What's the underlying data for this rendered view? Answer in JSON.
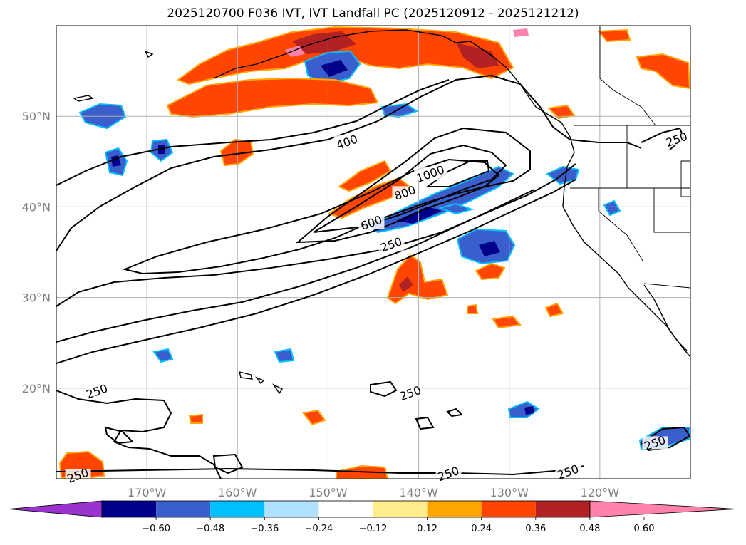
{
  "title": "2025120700 F036 IVT, IVT Landfall PC (2025120912 - 2025121212)",
  "map": {
    "lon_range": [
      -180,
      -110
    ],
    "lat_range": [
      10,
      60
    ],
    "lat_ticks": [
      {
        "value": 50,
        "label": "50°N"
      },
      {
        "value": 40,
        "label": "40°N"
      },
      {
        "value": 30,
        "label": "30°N"
      },
      {
        "value": 20,
        "label": "20°N"
      }
    ],
    "lon_ticks": [
      {
        "value": -170,
        "label": "170°W"
      },
      {
        "value": -160,
        "label": "160°W"
      },
      {
        "value": -150,
        "label": "150°W"
      },
      {
        "value": -140,
        "label": "140°W"
      },
      {
        "value": -130,
        "label": "130°W"
      },
      {
        "value": -120,
        "label": "120°W"
      }
    ],
    "grid": true,
    "ivt_contour_labels": [
      {
        "text": "400",
        "lon": -147.9,
        "lat": 47.1
      },
      {
        "text": "1000",
        "lon": -138.7,
        "lat": 43.6
      },
      {
        "text": "800",
        "lon": -141.5,
        "lat": 41.5
      },
      {
        "text": "600",
        "lon": -145.2,
        "lat": 38.2
      },
      {
        "text": "250",
        "lon": -143.0,
        "lat": 35.8
      },
      {
        "text": "250",
        "lon": -175.5,
        "lat": 19.6
      },
      {
        "text": "250",
        "lon": -140.9,
        "lat": 19.4
      },
      {
        "text": "250",
        "lon": -177.6,
        "lat": 10.3
      },
      {
        "text": "250",
        "lon": -136.7,
        "lat": 10.5
      },
      {
        "text": "250",
        "lon": -123.5,
        "lat": 10.7
      },
      {
        "text": "250",
        "lon": -113.9,
        "lat": 13.9
      },
      {
        "text": "250",
        "lon": -111.5,
        "lat": 47.4
      }
    ]
  },
  "colorbar": {
    "ticks": [
      "−0.60",
      "−0.48",
      "−0.36",
      "−0.24",
      "−0.12",
      "0.12",
      "0.24",
      "0.36",
      "0.48",
      "0.60"
    ],
    "colors": [
      "#9a32cd",
      "#00008b",
      "#3a5fcd",
      "#00bfff",
      "#b0e2ff",
      "#ffffff",
      "#ffec8b",
      "#ffa500",
      "#ff4500",
      "#b22222",
      "#ff82ab"
    ],
    "extend": "both"
  }
}
